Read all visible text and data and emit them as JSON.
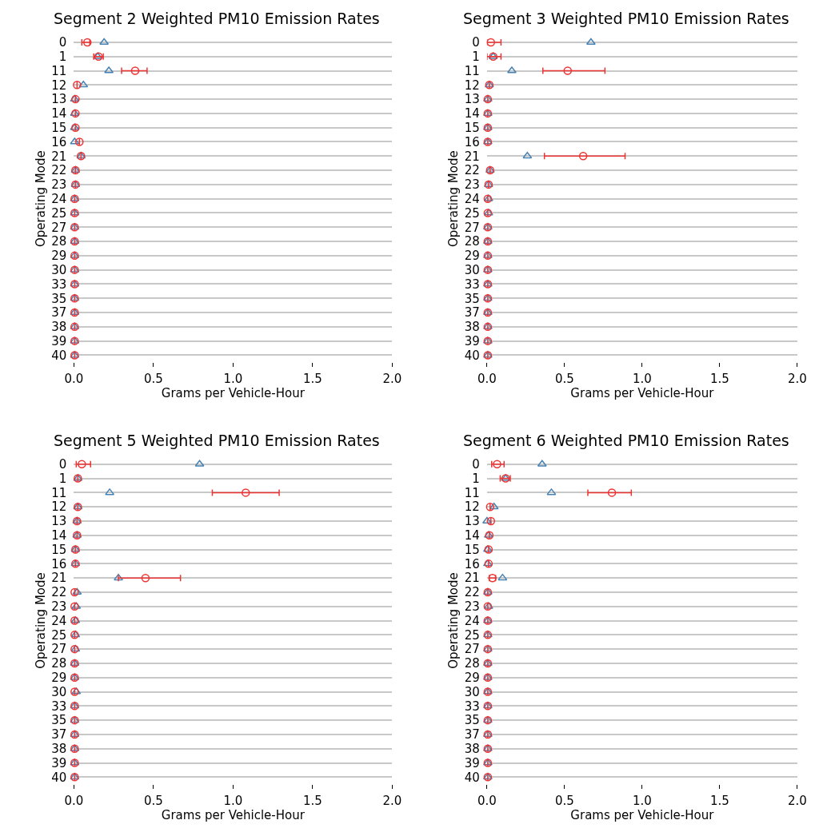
{
  "chart_data": [
    {
      "type": "scatter",
      "orientation": "horizontal",
      "title": "Segment 2 Weighted PM10 Emission Rates",
      "xlabel": "Grams per Vehicle-Hour",
      "ylabel": "Operating Mode",
      "categories": [
        "0",
        "1",
        "11",
        "12",
        "13",
        "14",
        "15",
        "16",
        "21",
        "22",
        "23",
        "24",
        "25",
        "27",
        "28",
        "29",
        "30",
        "33",
        "35",
        "37",
        "38",
        "39",
        "40"
      ],
      "xlim": [
        0,
        2
      ],
      "xticks": [
        {
          "value": 0,
          "label": "0.0"
        },
        {
          "value": 0.5,
          "label": "0.5"
        },
        {
          "value": 1,
          "label": "1.0"
        },
        {
          "value": 1.5,
          "label": "1.5"
        },
        {
          "value": 2,
          "label": "2.0"
        }
      ],
      "grid": "y",
      "series": [
        {
          "color": "#4682b4",
          "marker": "triangle",
          "values": [
            0.19,
            0.15,
            0.22,
            0.06,
            0.005,
            0.005,
            0.005,
            0.005,
            0.045,
            0.01,
            0.01,
            0.005,
            0.005,
            0.005,
            0.005,
            0.005,
            0.005,
            0.005,
            0.005,
            0.005,
            0.005,
            0.005,
            0.005
          ]
        },
        {
          "color": "#ee3333",
          "marker": "circle",
          "values": [
            0.085,
            0.155,
            0.385,
            0.02,
            0.01,
            0.01,
            0.01,
            0.035,
            0.045,
            0.01,
            0.01,
            0.005,
            0.005,
            0.005,
            0.005,
            0.005,
            0.005,
            0.005,
            0.005,
            0.005,
            0.005,
            0.005,
            0.005
          ],
          "errors": [
            [
              0.05,
              0.1
            ],
            [
              0.125,
              0.185
            ],
            [
              0.3,
              0.46
            ],
            null,
            null,
            null,
            null,
            null,
            null,
            null,
            null,
            null,
            null,
            null,
            null,
            null,
            null,
            null,
            null,
            null,
            null,
            null,
            null
          ]
        }
      ]
    },
    {
      "type": "scatter",
      "orientation": "horizontal",
      "title": "Segment 3 Weighted PM10 Emission Rates",
      "xlabel": "Grams per Vehicle-Hour",
      "ylabel": "Operating Mode",
      "categories": [
        "0",
        "1",
        "11",
        "12",
        "13",
        "14",
        "15",
        "16",
        "21",
        "22",
        "23",
        "24",
        "25",
        "27",
        "28",
        "29",
        "30",
        "33",
        "35",
        "37",
        "38",
        "39",
        "40"
      ],
      "xlim": [
        0,
        2
      ],
      "xticks": [
        {
          "value": 0,
          "label": "0.0"
        },
        {
          "value": 0.5,
          "label": "0.5"
        },
        {
          "value": 1,
          "label": "1.0"
        },
        {
          "value": 1.5,
          "label": "1.5"
        },
        {
          "value": 2,
          "label": "2.0"
        }
      ],
      "grid": "y",
      "series": [
        {
          "color": "#4682b4",
          "marker": "triangle",
          "values": [
            0.67,
            0.04,
            0.16,
            0.015,
            0.005,
            0.005,
            0.005,
            0.005,
            0.26,
            0.02,
            0.01,
            0.01,
            0.01,
            0.005,
            0.005,
            0.005,
            0.005,
            0.005,
            0.005,
            0.005,
            0.005,
            0.005,
            0.005
          ]
        },
        {
          "color": "#ee3333",
          "marker": "circle",
          "values": [
            0.025,
            0.04,
            0.52,
            0.015,
            0.005,
            0.005,
            0.005,
            0.005,
            0.62,
            0.02,
            0.01,
            0.005,
            0.005,
            0.005,
            0.005,
            0.005,
            0.005,
            0.005,
            0.005,
            0.005,
            0.005,
            0.005,
            0.005
          ],
          "errors": [
            [
              0,
              0.09
            ],
            [
              0,
              0.09
            ],
            [
              0.36,
              0.76
            ],
            null,
            null,
            null,
            null,
            null,
            [
              0.37,
              0.89
            ],
            null,
            null,
            null,
            null,
            null,
            null,
            null,
            null,
            null,
            null,
            null,
            null,
            null,
            null
          ]
        }
      ]
    },
    {
      "type": "scatter",
      "orientation": "horizontal",
      "title": "Segment 5 Weighted PM10 Emission Rates",
      "xlabel": "Grams per Vehicle-Hour",
      "ylabel": "Operating Mode",
      "categories": [
        "0",
        "1",
        "11",
        "12",
        "13",
        "14",
        "15",
        "16",
        "21",
        "22",
        "23",
        "24",
        "25",
        "27",
        "28",
        "29",
        "30",
        "33",
        "35",
        "37",
        "38",
        "39",
        "40"
      ],
      "xlim": [
        0,
        2
      ],
      "xticks": [
        {
          "value": 0,
          "label": "0.0"
        },
        {
          "value": 0.5,
          "label": "0.5"
        },
        {
          "value": 1,
          "label": "1.0"
        },
        {
          "value": 1.5,
          "label": "1.5"
        },
        {
          "value": 2,
          "label": "2.0"
        }
      ],
      "grid": "y",
      "series": [
        {
          "color": "#4682b4",
          "marker": "triangle",
          "values": [
            0.79,
            0.025,
            0.225,
            0.025,
            0.02,
            0.02,
            0.01,
            0.01,
            0.28,
            0.02,
            0.015,
            0.01,
            0.01,
            0.01,
            0.005,
            0.005,
            0.015,
            0.005,
            0.005,
            0.005,
            0.005,
            0.005,
            0.005
          ]
        },
        {
          "color": "#ee3333",
          "marker": "circle",
          "values": [
            0.05,
            0.025,
            1.08,
            0.025,
            0.02,
            0.02,
            0.01,
            0.01,
            0.45,
            0.005,
            0.005,
            0.005,
            0.005,
            0.005,
            0.005,
            0.005,
            0.005,
            0.005,
            0.005,
            0.005,
            0.005,
            0.005,
            0.005
          ],
          "errors": [
            [
              0.015,
              0.105
            ],
            null,
            [
              0.87,
              1.29
            ],
            null,
            null,
            null,
            null,
            null,
            [
              0.28,
              0.67
            ],
            null,
            null,
            null,
            null,
            null,
            null,
            null,
            null,
            null,
            null,
            null,
            null,
            null,
            null
          ]
        }
      ]
    },
    {
      "type": "scatter",
      "orientation": "horizontal",
      "title": "Segment 6 Weighted PM10 Emission Rates",
      "xlabel": "Grams per Vehicle-Hour",
      "ylabel": "Operating Mode",
      "categories": [
        "0",
        "1",
        "11",
        "12",
        "13",
        "14",
        "15",
        "16",
        "21",
        "22",
        "23",
        "24",
        "25",
        "27",
        "28",
        "29",
        "30",
        "33",
        "35",
        "37",
        "38",
        "39",
        "40"
      ],
      "xlim": [
        0,
        2
      ],
      "xticks": [
        {
          "value": 0,
          "label": "0.0"
        },
        {
          "value": 0.5,
          "label": "0.5"
        },
        {
          "value": 1,
          "label": "1.0"
        },
        {
          "value": 1.5,
          "label": "1.5"
        },
        {
          "value": 2,
          "label": "2.0"
        }
      ],
      "grid": "y",
      "series": [
        {
          "color": "#4682b4",
          "marker": "triangle",
          "values": [
            0.355,
            0.12,
            0.415,
            0.045,
            0.0,
            0.01,
            0.005,
            0.005,
            0.1,
            0.005,
            0.01,
            0.005,
            0.005,
            0.005,
            0.005,
            0.005,
            0.005,
            0.005,
            0.005,
            0.005,
            0.005,
            0.005,
            0.005
          ]
        },
        {
          "color": "#ee3333",
          "marker": "circle",
          "values": [
            0.065,
            0.12,
            0.805,
            0.02,
            0.025,
            0.015,
            0.01,
            0.01,
            0.035,
            0.005,
            0.005,
            0.005,
            0.005,
            0.005,
            0.005,
            0.005,
            0.005,
            0.005,
            0.005,
            0.005,
            0.005,
            0.005,
            0.005
          ],
          "errors": [
            [
              0.03,
              0.11
            ],
            [
              0.085,
              0.15
            ],
            [
              0.65,
              0.93
            ],
            null,
            null,
            null,
            null,
            null,
            [
              0.015,
              0.055
            ],
            null,
            null,
            null,
            null,
            null,
            null,
            null,
            null,
            null,
            null,
            null,
            null,
            null,
            null
          ]
        }
      ]
    }
  ]
}
